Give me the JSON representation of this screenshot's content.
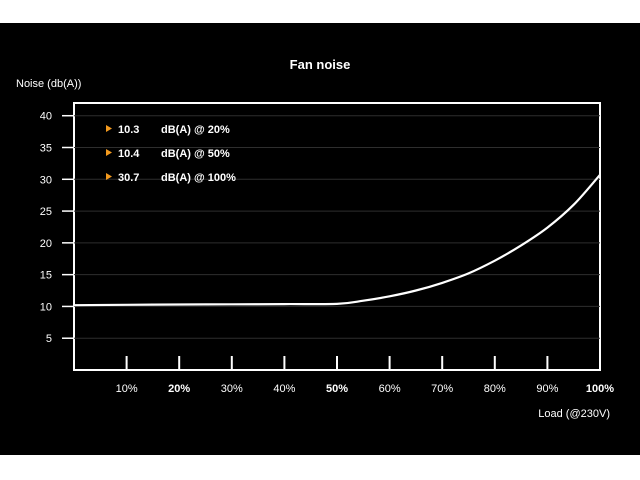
{
  "chart_data": {
    "type": "line",
    "title": "Fan noise",
    "ylabel": "Noise (db(A))",
    "xlabel": "Load (@230V)",
    "ylim": [
      0,
      42
    ],
    "xlim": [
      0,
      100
    ],
    "y_ticks": [
      "40",
      "35",
      "30",
      "25",
      "20",
      "15",
      "10",
      "5"
    ],
    "y_tick_values": [
      40,
      35,
      30,
      25,
      20,
      15,
      10,
      5
    ],
    "x_ticks": [
      {
        "label": "10%",
        "value": 10,
        "bold": false
      },
      {
        "label": "20%",
        "value": 20,
        "bold": true
      },
      {
        "label": "30%",
        "value": 30,
        "bold": false
      },
      {
        "label": "40%",
        "value": 40,
        "bold": false
      },
      {
        "label": "50%",
        "value": 50,
        "bold": true
      },
      {
        "label": "60%",
        "value": 60,
        "bold": false
      },
      {
        "label": "70%",
        "value": 70,
        "bold": false
      },
      {
        "label": "80%",
        "value": 80,
        "bold": false
      },
      {
        "label": "90%",
        "value": 90,
        "bold": false
      },
      {
        "label": "100%",
        "value": 100,
        "bold": true
      }
    ],
    "grid": true,
    "series": [
      {
        "x": [
          0,
          10,
          20,
          30,
          40,
          50,
          55,
          60,
          65,
          70,
          75,
          80,
          85,
          90,
          95,
          100
        ],
        "values": [
          10.2,
          10.25,
          10.3,
          10.33,
          10.37,
          10.4,
          10.9,
          11.6,
          12.5,
          13.7,
          15.2,
          17.2,
          19.6,
          22.4,
          26.0,
          30.7
        ]
      }
    ],
    "annotations": [
      {
        "value": "10.3",
        "text": "dB(A) @ 20%"
      },
      {
        "value": "10.4",
        "text": "dB(A) @ 50%"
      },
      {
        "value": "30.7",
        "text": "dB(A) @ 100%"
      }
    ],
    "colors": {
      "background": "#000000",
      "line": "#ffffff",
      "grid": "#2e2e2e",
      "marker": "#f39a1e"
    }
  }
}
